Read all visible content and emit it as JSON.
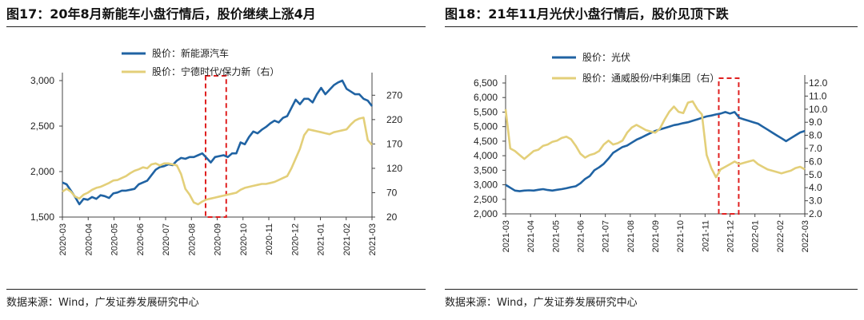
{
  "colors": {
    "primary": "#2063a3",
    "secondary": "#e3cf79",
    "highlight": "#e02020"
  },
  "chart_data": [
    {
      "type": "line",
      "title": "图17：20年8月新能车小盘行情后，股价继续上涨4月",
      "source": "数据来源：Wind，广发证券发展研究中心",
      "x_labels": [
        "2020-03",
        "2020-04",
        "2020-05",
        "2020-06",
        "2020-07",
        "2020-08",
        "2020-09",
        "2020-10",
        "2020-11",
        "2020-12",
        "2021-01",
        "2021-02",
        "2021-03"
      ],
      "left_axis": {
        "range": [
          1500,
          3000
        ],
        "ticks": [
          "1,500",
          "2,000",
          "2,500",
          "3,000"
        ]
      },
      "right_axis": {
        "range": [
          20,
          300
        ],
        "ticks": [
          "20",
          "70",
          "120",
          "170",
          "220",
          "270"
        ]
      },
      "highlight_period": [
        "2020-08",
        "2020-09"
      ],
      "legend_position": "top-center",
      "series": [
        {
          "name": "股价：新能源汽车",
          "axis": "left",
          "values": [
            1880,
            1860,
            1790,
            1720,
            1640,
            1700,
            1690,
            1720,
            1700,
            1740,
            1730,
            1710,
            1760,
            1770,
            1790,
            1790,
            1800,
            1810,
            1860,
            1880,
            1900,
            1960,
            2020,
            2050,
            2060,
            2080,
            2070,
            2120,
            2150,
            2140,
            2160,
            2160,
            2180,
            2200,
            2150,
            2100,
            2160,
            2170,
            2180,
            2160,
            2200,
            2200,
            2320,
            2300,
            2380,
            2440,
            2420,
            2460,
            2490,
            2530,
            2560,
            2540,
            2590,
            2610,
            2700,
            2790,
            2740,
            2800,
            2800,
            2760,
            2850,
            2920,
            2850,
            2900,
            2950,
            2980,
            3000,
            2910,
            2880,
            2850,
            2850,
            2800,
            2780,
            2720
          ]
        },
        {
          "name": "股价：宁德时代/保力新（右）",
          "axis": "right",
          "values": [
            72,
            78,
            72,
            62,
            58,
            66,
            70,
            76,
            80,
            82,
            86,
            90,
            95,
            96,
            100,
            104,
            110,
            115,
            118,
            122,
            120,
            128,
            130,
            126,
            130,
            130,
            128,
            126,
            108,
            78,
            66,
            50,
            46,
            52,
            56,
            58,
            60,
            62,
            64,
            66,
            68,
            70,
            76,
            80,
            82,
            84,
            86,
            88,
            88,
            90,
            92,
            96,
            100,
            104,
            120,
            140,
            160,
            188,
            200,
            198,
            196,
            194,
            192,
            190,
            194,
            196,
            198,
            200,
            210,
            218,
            222,
            224,
            178,
            168
          ]
        }
      ]
    },
    {
      "type": "line",
      "title": "图18：21年11月光伏小盘行情后，股价见顶下跌",
      "source": "数据来源：Wind，广发证券发展研究中心",
      "x_labels": [
        "2021-03",
        "2021-04",
        "2021-05",
        "2021-06",
        "2021-07",
        "2021-08",
        "2021-09",
        "2021-10",
        "2021-11",
        "2021-12",
        "2022-01",
        "2022-02",
        "2022-03"
      ],
      "left_axis": {
        "range": [
          2000,
          6500
        ],
        "ticks": [
          "2,000",
          "2,500",
          "3,000",
          "3,500",
          "4,000",
          "4,500",
          "5,000",
          "5,500",
          "6,000",
          "6,500"
        ]
      },
      "right_axis": {
        "range": [
          2.0,
          12.0
        ],
        "ticks": [
          "2.0",
          "3.0",
          "4.0",
          "5.0",
          "6.0",
          "7.0",
          "8.0",
          "9.0",
          "10.0",
          "11.0",
          "12.0"
        ]
      },
      "highlight_period": [
        "2021-11",
        "2021-12"
      ],
      "legend_position": "top-center",
      "series": [
        {
          "name": "股价：光伏",
          "axis": "left",
          "values": [
            3000,
            2900,
            2800,
            2780,
            2800,
            2810,
            2800,
            2830,
            2850,
            2820,
            2800,
            2830,
            2850,
            2880,
            2920,
            2950,
            3050,
            3200,
            3300,
            3500,
            3600,
            3720,
            3900,
            4100,
            4200,
            4300,
            4350,
            4450,
            4550,
            4620,
            4700,
            4780,
            4850,
            4900,
            4950,
            5000,
            5050,
            5080,
            5120,
            5150,
            5200,
            5250,
            5300,
            5350,
            5380,
            5420,
            5450,
            5500,
            5450,
            5500,
            5300,
            5250,
            5200,
            5150,
            5100,
            5000,
            4900,
            4800,
            4700,
            4600,
            4500,
            4600,
            4700,
            4800,
            4850
          ]
        },
        {
          "name": "股价：通威股份/中利集团（右）",
          "axis": "right",
          "values": [
            10.0,
            7.0,
            6.8,
            6.5,
            6.2,
            6.5,
            6.8,
            6.9,
            7.2,
            7.3,
            7.5,
            7.6,
            7.8,
            7.9,
            7.7,
            7.2,
            6.6,
            6.3,
            6.5,
            6.6,
            6.8,
            7.3,
            7.6,
            7.3,
            7.4,
            7.6,
            8.2,
            8.6,
            8.8,
            8.6,
            8.4,
            8.3,
            8.2,
            8.5,
            9.2,
            9.8,
            10.2,
            9.8,
            9.7,
            10.5,
            10.6,
            10.0,
            9.6,
            6.5,
            5.5,
            4.8,
            5.4,
            5.6,
            5.8,
            6.0,
            5.8,
            5.9,
            6.0,
            6.1,
            5.8,
            5.6,
            5.4,
            5.3,
            5.2,
            5.1,
            5.2,
            5.3,
            5.5,
            5.6,
            5.4
          ]
        }
      ]
    }
  ]
}
